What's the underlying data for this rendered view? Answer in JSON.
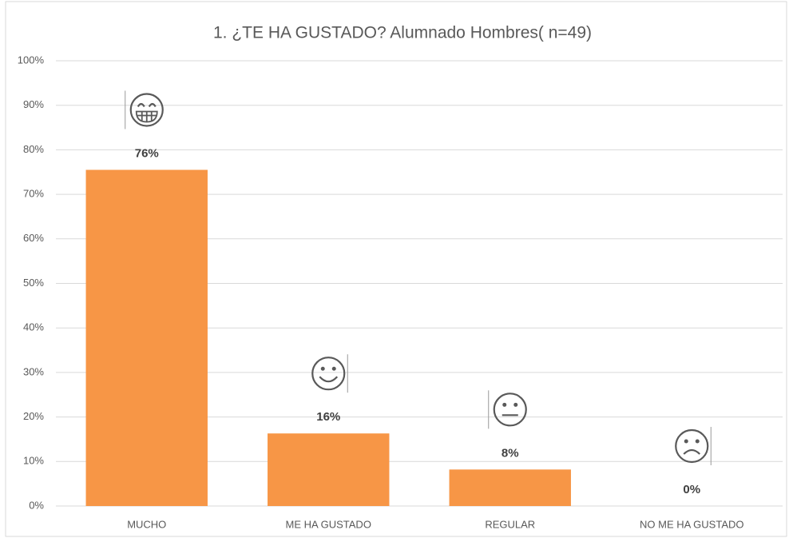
{
  "chart_data": {
    "type": "bar",
    "title": "1. ¿TE HA GUSTADO? Alumnado Hombres( n=49)",
    "categories": [
      "MUCHO",
      "ME HA GUSTADO",
      "REGULAR",
      "NO ME HA GUSTADO"
    ],
    "values": [
      75.5,
      16.3,
      8.2,
      0
    ],
    "value_labels": [
      "76%",
      "16%",
      "8%",
      "0%"
    ],
    "color": "#f79646",
    "ylim": [
      0,
      100
    ],
    "yticks": [
      {
        "value": 0,
        "label": "0%"
      },
      {
        "value": 10,
        "label": "10%"
      },
      {
        "value": 20,
        "label": "20%"
      },
      {
        "value": 30,
        "label": "30%"
      },
      {
        "value": 40,
        "label": "40%"
      },
      {
        "value": 50,
        "label": "50%"
      },
      {
        "value": 60,
        "label": "60%"
      },
      {
        "value": 70,
        "label": "70%"
      },
      {
        "value": 80,
        "label": "80%"
      },
      {
        "value": 90,
        "label": "90%"
      },
      {
        "value": 100,
        "label": "100%"
      }
    ],
    "grid": true
  }
}
